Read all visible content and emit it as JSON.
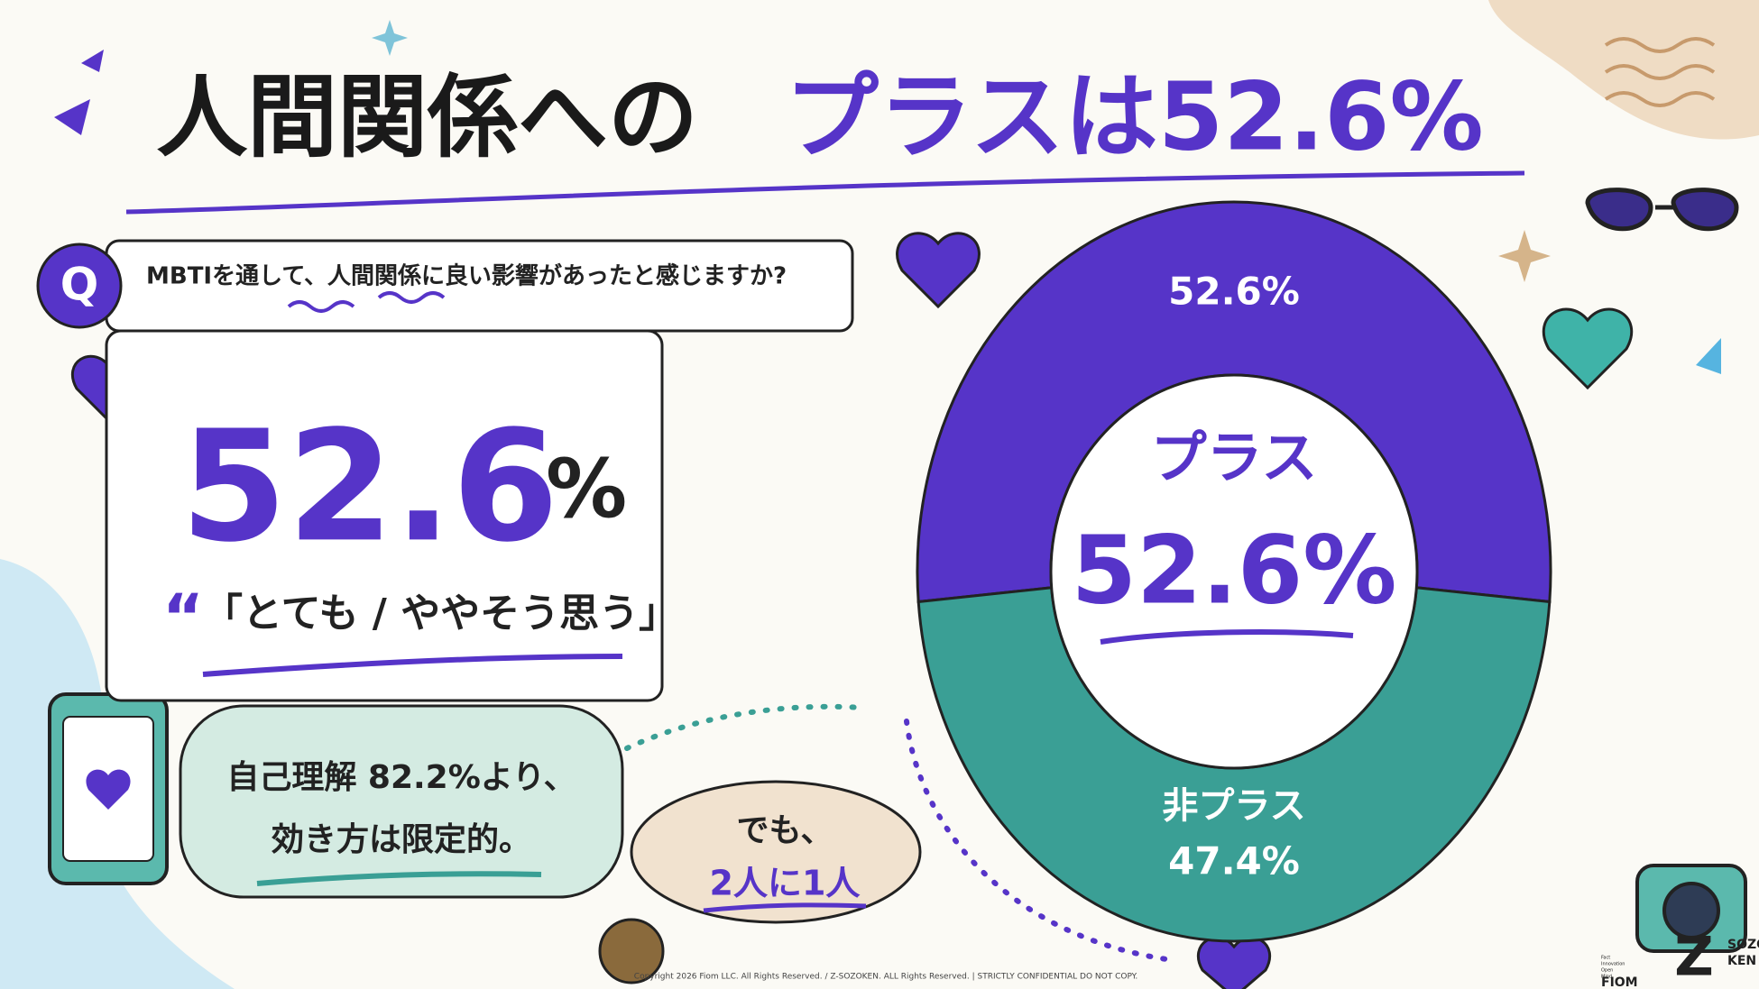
{
  "title_parts": [
    "人間関係への",
    "プラスは52.6%"
  ],
  "question": {
    "mark": "Q",
    "text": "MBTIを通して、人間関係に良い影響があったと感じますか?"
  },
  "stat_card": {
    "value": 52.6,
    "unit": "%",
    "quote_mark": "“",
    "quote": "「とても / ややそう思う」"
  },
  "note": {
    "lines": [
      "自己理解 82.2%より、",
      "効き方は限定的。"
    ]
  },
  "aside": {
    "lines": [
      "でも、",
      "2人に1人"
    ]
  },
  "chart_data": {
    "type": "pie",
    "categories": [
      "プラス",
      "非プラス"
    ],
    "values": [
      52.6,
      47.4
    ],
    "value_labels": [
      "52.6%",
      "47.4%"
    ],
    "colors": [
      "#5634c8",
      "#3a9f95"
    ]
  },
  "footer": {
    "copyright": "Copyright 2026 Fiom LLC. All Rights Reserved. / Z-SOZOKEN. ALL Rights Reserved. | STRICTLY CONFIDENTIAL DO NOT COPY."
  },
  "logos": {
    "fiom": "FIOM",
    "fiom_lines": [
      "Fact",
      "Innovation",
      "Open",
      "Mind"
    ],
    "z": "Z",
    "sozo": "SOZO",
    "ken": "KEN"
  }
}
